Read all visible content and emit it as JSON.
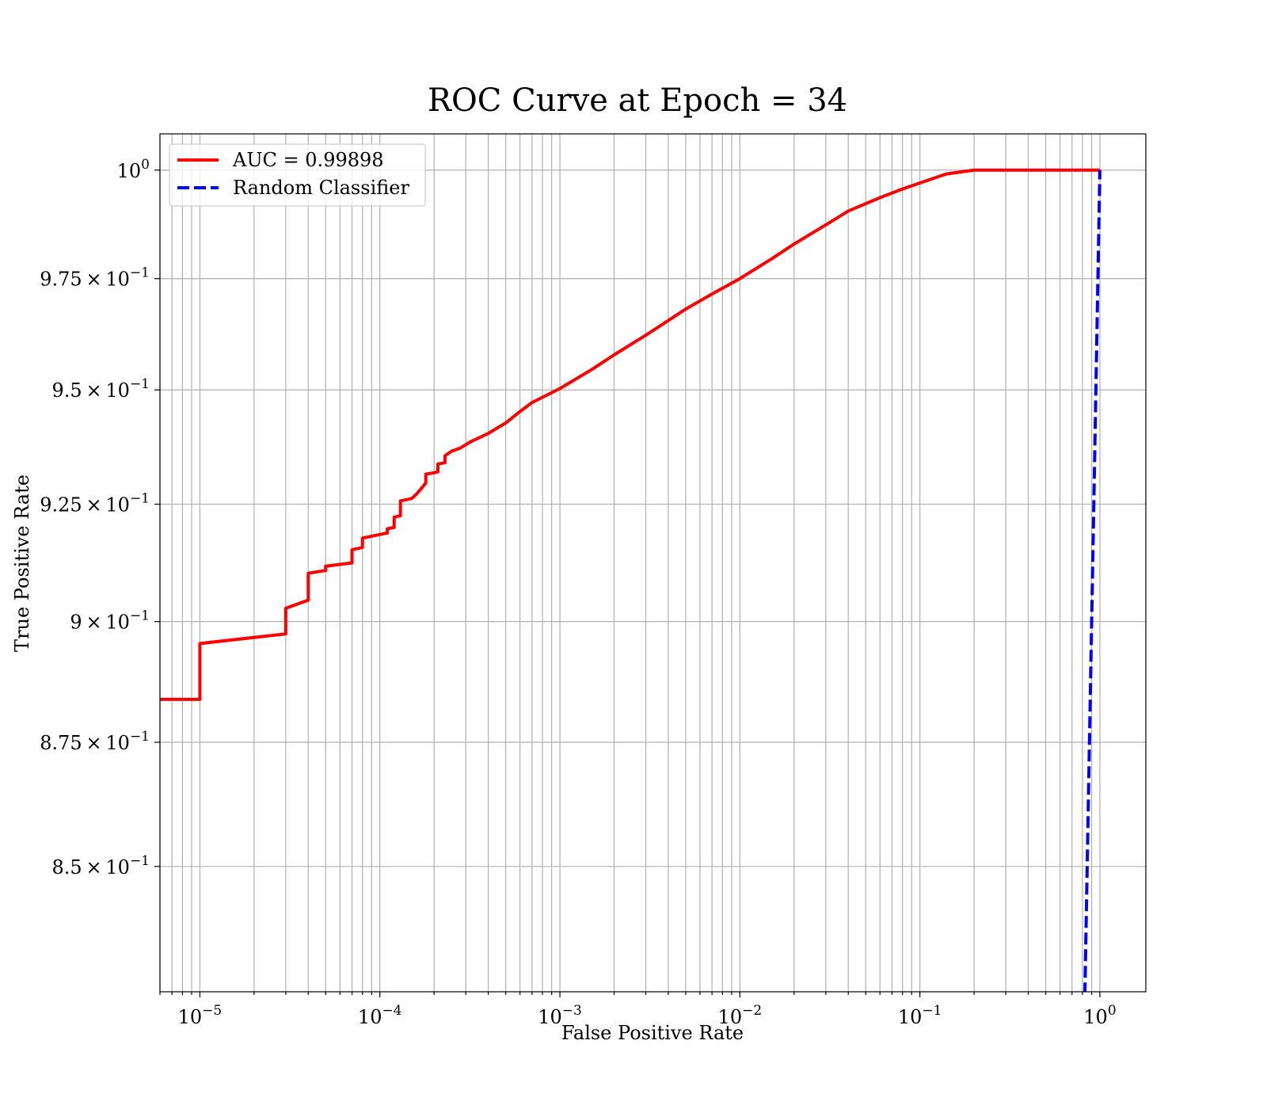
{
  "chart_data": {
    "type": "line",
    "title": "ROC Curve at Epoch = 34",
    "xlabel": "False Positive Rate",
    "ylabel": "True Positive Rate",
    "xscale": "log",
    "yscale": "log",
    "xlim": [
      6e-06,
      1.8
    ],
    "ylim": [
      0.8255,
      1.0085
    ],
    "grid": true,
    "legend_position": "top-left",
    "x_tick_labels": [
      {
        "base": "10",
        "exp": "−5",
        "value": 1e-05
      },
      {
        "base": "10",
        "exp": "−4",
        "value": 0.0001
      },
      {
        "base": "10",
        "exp": "−3",
        "value": 0.001
      },
      {
        "base": "10",
        "exp": "−2",
        "value": 0.01
      },
      {
        "base": "10",
        "exp": "−1",
        "value": 0.1
      },
      {
        "base": "10",
        "exp": "0",
        "value": 1
      }
    ],
    "y_tick_labels": [
      {
        "mant": "",
        "base": "10",
        "exp": "0",
        "value": 1.0
      },
      {
        "mant": "9.75",
        "base": "10",
        "exp": "−1",
        "value": 0.975
      },
      {
        "mant": "9.5",
        "base": "10",
        "exp": "−1",
        "value": 0.95
      },
      {
        "mant": "9.25",
        "base": "10",
        "exp": "−1",
        "value": 0.925
      },
      {
        "mant": "9",
        "base": "10",
        "exp": "−1",
        "value": 0.9
      },
      {
        "mant": "8.75",
        "base": "10",
        "exp": "−1",
        "value": 0.875
      },
      {
        "mant": "8.5",
        "base": "10",
        "exp": "−1",
        "value": 0.85
      }
    ],
    "series": [
      {
        "name": "AUC = 0.99898",
        "color": "#ff0000",
        "style": "solid",
        "points": [
          [
            6e-06,
            0.8838
          ],
          [
            1e-05,
            0.8838
          ],
          [
            1e-05,
            0.8954
          ],
          [
            3e-05,
            0.8974
          ],
          [
            3e-05,
            0.9028
          ],
          [
            4e-05,
            0.9045
          ],
          [
            4e-05,
            0.9102
          ],
          [
            5e-05,
            0.9108
          ],
          [
            5e-05,
            0.9117
          ],
          [
            7e-05,
            0.9124
          ],
          [
            7e-05,
            0.9152
          ],
          [
            8e-05,
            0.9157
          ],
          [
            8e-05,
            0.9177
          ],
          [
            0.00011,
            0.9188
          ],
          [
            0.00011,
            0.9197
          ],
          [
            0.00012,
            0.92
          ],
          [
            0.00012,
            0.9222
          ],
          [
            0.00013,
            0.9225
          ],
          [
            0.00013,
            0.9257
          ],
          [
            0.00015,
            0.9262
          ],
          [
            0.00016,
            0.9272
          ],
          [
            0.00017,
            0.9284
          ],
          [
            0.00018,
            0.9296
          ],
          [
            0.00018,
            0.9315
          ],
          [
            0.0002,
            0.9318
          ],
          [
            0.00021,
            0.932
          ],
          [
            0.00021,
            0.9337
          ],
          [
            0.00023,
            0.934
          ],
          [
            0.00023,
            0.9355
          ],
          [
            0.00025,
            0.9365
          ],
          [
            0.00028,
            0.9372
          ],
          [
            0.00032,
            0.9386
          ],
          [
            0.0004,
            0.9404
          ],
          [
            0.0005,
            0.9427
          ],
          [
            0.0006,
            0.9452
          ],
          [
            0.0007,
            0.9472
          ],
          [
            0.001,
            0.9503
          ],
          [
            0.0015,
            0.9545
          ],
          [
            0.002,
            0.9578
          ],
          [
            0.003,
            0.9622
          ],
          [
            0.004,
            0.9655
          ],
          [
            0.005,
            0.9681
          ],
          [
            0.007,
            0.9715
          ],
          [
            0.01,
            0.975
          ],
          [
            0.015,
            0.9795
          ],
          [
            0.02,
            0.9829
          ],
          [
            0.03,
            0.9873
          ],
          [
            0.04,
            0.9905
          ],
          [
            0.06,
            0.9936
          ],
          [
            0.08,
            0.9956
          ],
          [
            0.1,
            0.997
          ],
          [
            0.14,
            0.9991
          ],
          [
            0.2,
            1.0
          ],
          [
            1.0,
            1.0
          ]
        ]
      },
      {
        "name": "Random Classifier",
        "color": "#0000ff",
        "style": "dashed",
        "points": [
          [
            0.825,
            0.825
          ],
          [
            0.85,
            0.85
          ],
          [
            0.875,
            0.875
          ],
          [
            0.9,
            0.9
          ],
          [
            0.925,
            0.925
          ],
          [
            0.95,
            0.95
          ],
          [
            0.975,
            0.975
          ],
          [
            1.0,
            1.0
          ]
        ]
      }
    ]
  }
}
